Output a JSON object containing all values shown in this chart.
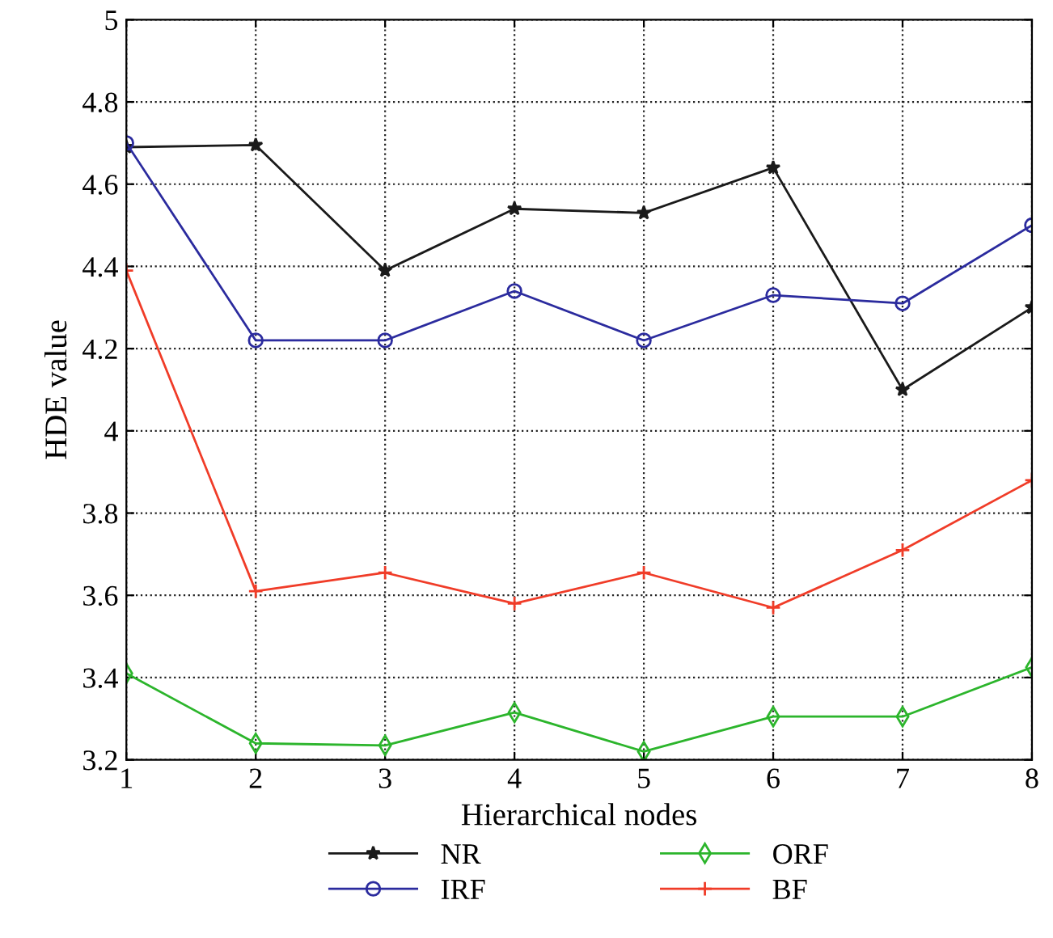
{
  "chart_data": {
    "type": "line",
    "xlabel": "Hierarchical nodes",
    "ylabel": "HDE value",
    "x": [
      1,
      2,
      3,
      4,
      5,
      6,
      7,
      8
    ],
    "series": [
      {
        "name": "NR",
        "color": "#1a1a1a",
        "marker": "star",
        "values": [
          4.69,
          4.695,
          4.39,
          4.54,
          4.53,
          4.64,
          4.1,
          4.3
        ]
      },
      {
        "name": "IRF",
        "color": "#2b2b9e",
        "marker": "circle",
        "values": [
          4.7,
          4.22,
          4.22,
          4.34,
          4.22,
          4.33,
          4.31,
          4.5
        ]
      },
      {
        "name": "ORF",
        "color": "#2cb52c",
        "marker": "diamond",
        "values": [
          3.41,
          3.24,
          3.235,
          3.315,
          3.22,
          3.305,
          3.305,
          3.425
        ]
      },
      {
        "name": "BF",
        "color": "#f03c28",
        "marker": "cross",
        "values": [
          4.39,
          3.61,
          3.655,
          3.58,
          3.655,
          3.57,
          3.71,
          3.88
        ]
      }
    ],
    "xlim": [
      1,
      8
    ],
    "xticks": [
      1,
      2,
      3,
      4,
      5,
      6,
      7,
      8
    ],
    "ylim": [
      3.2,
      5
    ],
    "yticks": [
      3.2,
      3.4,
      3.6,
      3.8,
      4,
      4.2,
      4.4,
      4.6,
      4.8,
      5
    ],
    "grid": true,
    "legend": "bottom",
    "line_style": "solid"
  }
}
